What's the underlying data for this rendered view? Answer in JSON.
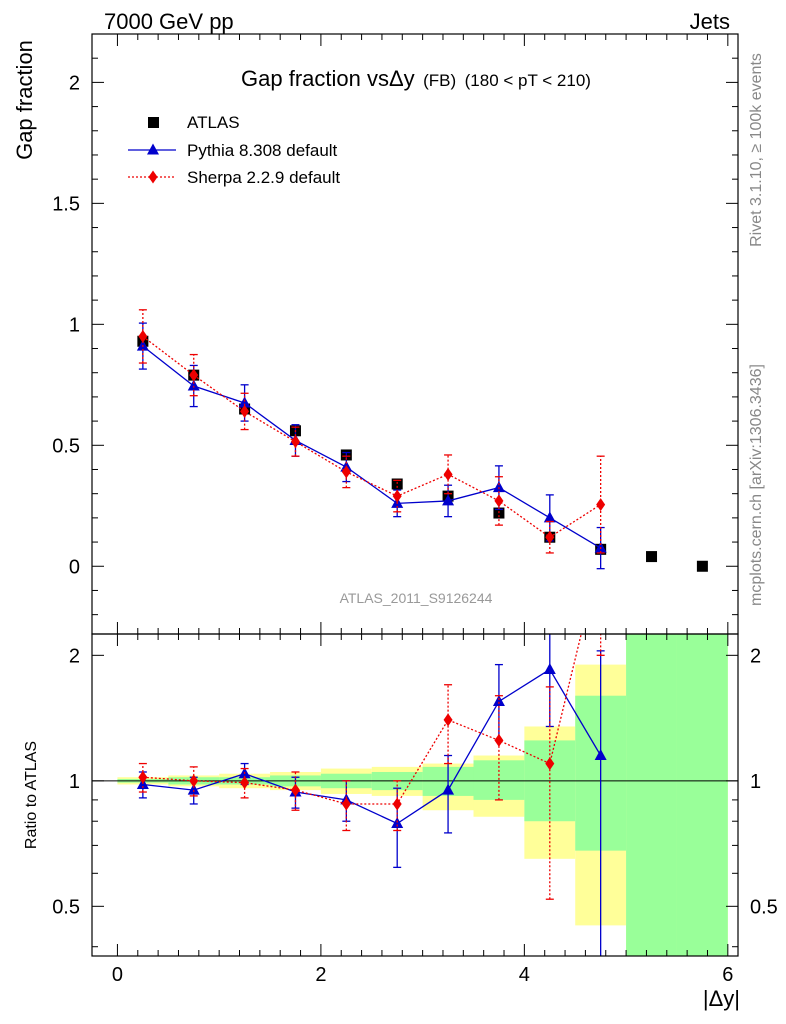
{
  "header": {
    "energy_label": "7000 GeV pp",
    "process_label": "Jets"
  },
  "side_labels": {
    "rivet": "Rivet 3.1.10, ≥ 100k events",
    "mcplots": "mcplots.cern.ch [arXiv:1306.3436]"
  },
  "chart_data": {
    "type": "scatter",
    "title_main": "Gap fraction vsΔy",
    "title_fb": "(FB)",
    "title_cut": "(180 < pT < 210)",
    "analysis_label": "ATLAS_2011_S9126244",
    "xlabel": "|Δy|",
    "ylabel": "Gap fraction",
    "ratio_ylabel": "Ratio to ATLAS",
    "xlim": [
      -0.25,
      6.1
    ],
    "ylim": [
      -0.28,
      2.2
    ],
    "ratio_ylim": [
      0.38,
      2.25
    ],
    "ratio_log": true,
    "legend_position": "top-left",
    "x_ticks": [
      "0",
      "2",
      "4",
      "6"
    ],
    "y_ticks": [
      "0",
      "0.5",
      "1",
      "1.5",
      "2"
    ],
    "ratio_ticks": [
      "0.5",
      "1",
      "2"
    ],
    "colors": {
      "data": "#000000",
      "pythia": "#0000cc",
      "sherpa": "#ee0000",
      "band_inner": "#99ff99",
      "band_outer": "#ffff99"
    },
    "bin_edges": [
      0,
      0.5,
      1,
      1.5,
      2,
      2.5,
      3,
      3.5,
      4,
      4.5,
      5,
      5.5,
      6
    ],
    "series": [
      {
        "name": "ATLAS",
        "marker": "square",
        "x": [
          0.25,
          0.75,
          1.25,
          1.75,
          2.25,
          2.75,
          3.25,
          3.75,
          4.25,
          4.75,
          5.25,
          5.75
        ],
        "y": [
          0.93,
          0.79,
          0.65,
          0.56,
          0.46,
          0.34,
          0.29,
          0.22,
          0.12,
          0.07,
          0.04,
          0.0
        ]
      },
      {
        "name": "Pythia 8.308 default",
        "marker": "triangle",
        "x": [
          0.25,
          0.75,
          1.25,
          1.75,
          2.25,
          2.75,
          3.25,
          3.75,
          4.25,
          4.75
        ],
        "y": [
          0.91,
          0.745,
          0.675,
          0.52,
          0.41,
          0.26,
          0.27,
          0.325,
          0.2,
          0.075
        ],
        "err": [
          0.095,
          0.085,
          0.075,
          0.065,
          0.06,
          0.055,
          0.065,
          0.09,
          0.095,
          0.085
        ],
        "ratio": [
          0.98,
          0.95,
          1.04,
          0.94,
          0.9,
          0.79,
          0.95,
          1.55,
          1.85,
          1.15
        ],
        "ratio_err_lo": [
          0.07,
          0.07,
          0.06,
          0.08,
          0.1,
          0.17,
          0.2,
          0.3,
          0.5,
          0.9
        ],
        "ratio_err_hi": [
          0.07,
          0.07,
          0.06,
          0.08,
          0.1,
          0.17,
          0.2,
          0.35,
          0.6,
          0.9
        ]
      },
      {
        "name": "Sherpa 2.2.9 default",
        "marker": "diamond",
        "x": [
          0.25,
          0.75,
          1.25,
          1.75,
          2.25,
          2.75,
          3.25,
          3.75,
          4.25,
          4.75
        ],
        "y": [
          0.95,
          0.79,
          0.64,
          0.515,
          0.39,
          0.29,
          0.38,
          0.27,
          0.12,
          0.255
        ],
        "err": [
          0.11,
          0.085,
          0.075,
          0.06,
          0.065,
          0.065,
          0.08,
          0.1,
          0.065,
          0.2
        ],
        "ratio": [
          1.02,
          1.0,
          0.99,
          0.95,
          0.88,
          0.88,
          1.4,
          1.25,
          1.1,
          3.5
        ],
        "ratio_err_lo": [
          0.08,
          0.08,
          0.08,
          0.1,
          0.12,
          0.12,
          0.3,
          0.35,
          0.58,
          1.5
        ],
        "ratio_err_hi": [
          0.08,
          0.08,
          0.08,
          0.1,
          0.12,
          0.12,
          0.3,
          0.35,
          0.58,
          1.5
        ]
      }
    ],
    "ratio_band_outer": [
      [
        0.98,
        1.02
      ],
      [
        0.97,
        1.03
      ],
      [
        0.96,
        1.04
      ],
      [
        0.95,
        1.05
      ],
      [
        0.93,
        1.07
      ],
      [
        0.92,
        1.08
      ],
      [
        0.85,
        1.1
      ],
      [
        0.82,
        1.15
      ],
      [
        0.65,
        1.35
      ],
      [
        0.45,
        1.9
      ],
      [
        0.1,
        9
      ],
      [
        0.1,
        9
      ]
    ],
    "ratio_band_inner": [
      [
        0.99,
        1.01
      ],
      [
        0.98,
        1.02
      ],
      [
        0.98,
        1.02
      ],
      [
        0.97,
        1.03
      ],
      [
        0.96,
        1.04
      ],
      [
        0.95,
        1.05
      ],
      [
        0.92,
        1.08
      ],
      [
        0.9,
        1.12
      ],
      [
        0.8,
        1.25
      ],
      [
        0.68,
        1.6
      ],
      [
        0.1,
        9
      ],
      [
        0.1,
        9
      ]
    ]
  }
}
